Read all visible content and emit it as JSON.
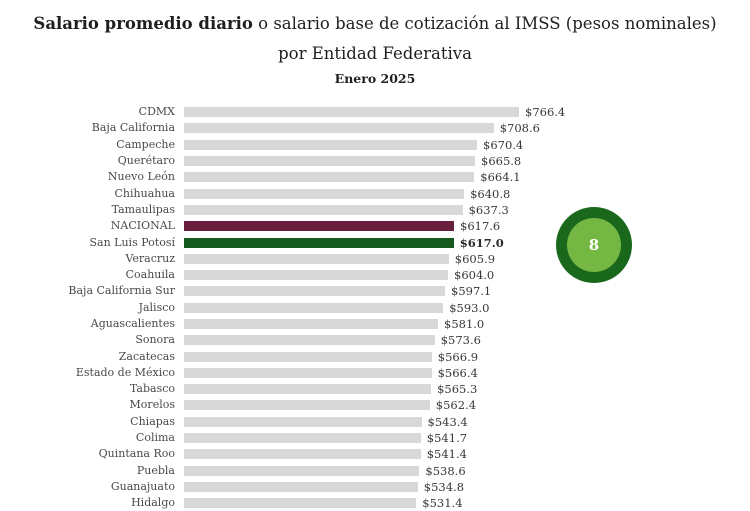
{
  "header": {
    "title_bold": "Salario promedio diario",
    "title_rest": " o salario base de cotización al IMSS (pesos nominales)",
    "title_line2": "por Entidad Federativa",
    "subtitle": "Enero 2025"
  },
  "badge": {
    "label": "8"
  },
  "colors": {
    "bar_default": "#d8d8d8",
    "bar_nacional": "#6b1f3e",
    "bar_san_luis_potosi": "#15591f",
    "badge_outer": "#1a681c",
    "badge_inner": "#74b843",
    "text": "#1f1f1f"
  },
  "chart_data": {
    "type": "bar",
    "orientation": "horizontal",
    "title": "Salario promedio diario o salario base de cotización al IMSS (pesos nominales) por Entidad Federativa",
    "subtitle": "Enero 2025",
    "xlabel": "",
    "ylabel": "",
    "xlim": [
      0,
      790
    ],
    "grid": false,
    "legend": false,
    "categories": [
      "CDMX",
      "Baja California",
      "Campeche",
      "Querétaro",
      "Nuevo León",
      "Chihuahua",
      "Tamaulipas",
      "NACIONAL",
      "San Luis Potosí",
      "Veracruz",
      "Coahuila",
      "Baja California Sur",
      "Jalisco",
      "Aguascalientes",
      "Sonora",
      "Zacatecas",
      "Estado de México",
      "Tabasco",
      "Morelos",
      "Chiapas",
      "Colima",
      "Quintana Roo",
      "Puebla",
      "Guanajuato",
      "Hidalgo"
    ],
    "values": [
      766.4,
      708.6,
      670.4,
      665.8,
      664.1,
      640.8,
      637.3,
      617.6,
      617.0,
      605.9,
      604.0,
      597.1,
      593.0,
      581.0,
      573.6,
      566.9,
      566.4,
      565.3,
      562.4,
      543.4,
      541.7,
      541.4,
      538.6,
      534.8,
      531.4
    ],
    "value_labels": [
      "$766.4",
      "$708.6",
      "$670.4",
      "$665.8",
      "$664.1",
      "$640.8",
      "$637.3",
      "$617.6",
      "$617.0",
      "$605.9",
      "$604.0",
      "$597.1",
      "$593.0",
      "$581.0",
      "$573.6",
      "$566.9",
      "$566.4",
      "$565.3",
      "$562.4",
      "$543.4",
      "$541.7",
      "$541.4",
      "$538.6",
      "$534.8",
      "$531.4"
    ],
    "highlighted_bars": [
      {
        "category": "NACIONAL",
        "color": "#6b1f3e",
        "value_bold": false
      },
      {
        "category": "San Luis Potosí",
        "color": "#15591f",
        "value_bold": true
      }
    ],
    "annotation_badge": "8",
    "last_row_clipped": true
  }
}
